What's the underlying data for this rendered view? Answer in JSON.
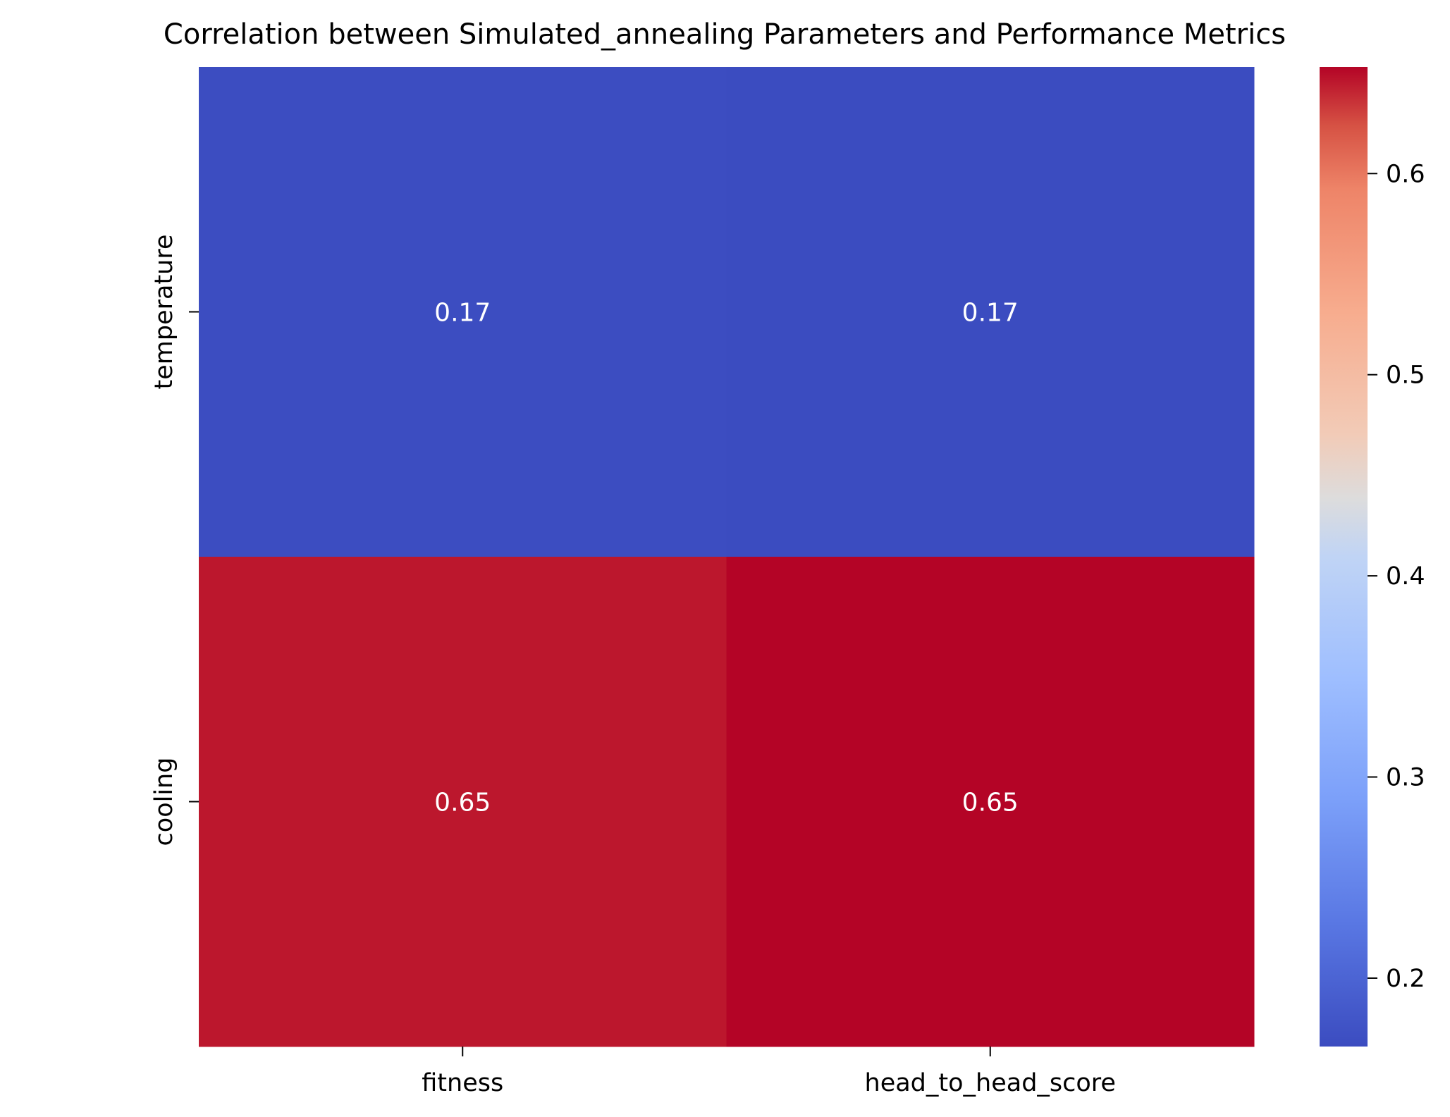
{
  "chart_data": {
    "type": "heatmap",
    "title": "Correlation between Simulated_annealing Parameters and Performance Metrics",
    "xlabel": "",
    "ylabel": "",
    "rows": [
      "temperature",
      "cooling"
    ],
    "columns": [
      "fitness",
      "head_to_head_score"
    ],
    "values": [
      [
        0.168,
        0.166
      ],
      [
        0.646,
        0.653
      ]
    ],
    "annotations": [
      [
        "0.17",
        "0.17"
      ],
      [
        "0.65",
        "0.65"
      ]
    ],
    "colormap": "coolwarm",
    "colorbar": {
      "range": [
        0.166,
        0.653
      ],
      "ticks": [
        0.2,
        0.3,
        0.4,
        0.5,
        0.6
      ],
      "tick_labels": [
        "0.2",
        "0.3",
        "0.4",
        "0.5",
        "0.6"
      ]
    },
    "legend": "none",
    "grid": false
  }
}
